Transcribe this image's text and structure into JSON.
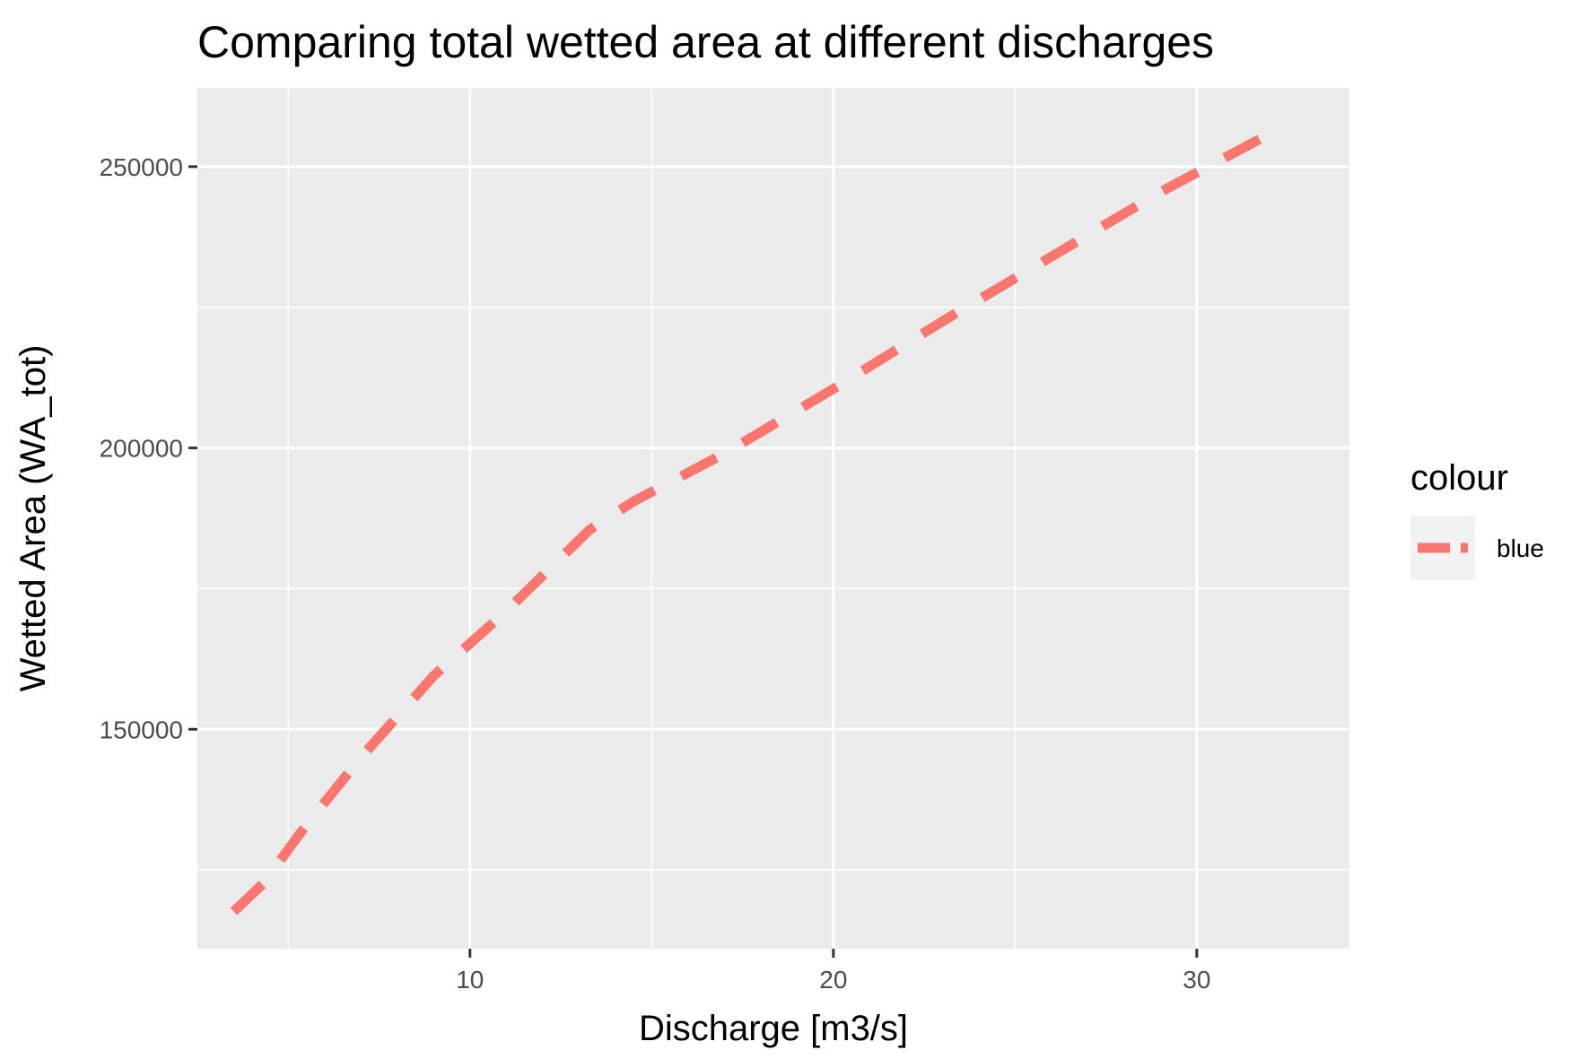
{
  "chart_data": {
    "type": "line",
    "title": "Comparing total wetted area at different discharges",
    "xlabel": "Discharge [m3/s]",
    "ylabel": "Wetted Area (WA_tot)",
    "xlim": [
      2.5,
      34.2
    ],
    "ylim": [
      111000,
      264000
    ],
    "x_ticks": [
      10,
      20,
      30
    ],
    "x_tick_labels": [
      "10",
      "20",
      "30"
    ],
    "x_minor": [
      5,
      15,
      25
    ],
    "y_ticks": [
      150000,
      200000,
      250000
    ],
    "y_tick_labels": [
      "150000",
      "200000",
      "250000"
    ],
    "y_minor": [
      125000,
      175000,
      225000
    ],
    "grid": true,
    "legend": {
      "title": "colour",
      "position": "right"
    },
    "series": [
      {
        "name": "blue",
        "color": "#F8766D",
        "line_style": "dashed",
        "x": [
          3.5,
          4.3,
          5.5,
          7.0,
          9.0,
          11.0,
          13.3,
          14.5,
          17.0,
          20.0,
          23.0,
          26.0,
          29.0,
          32.2
        ],
        "y": [
          117600,
          122500,
          133000,
          145000,
          159500,
          171000,
          185500,
          190500,
          199000,
          210500,
          222500,
          234000,
          245500,
          256500
        ]
      }
    ]
  }
}
